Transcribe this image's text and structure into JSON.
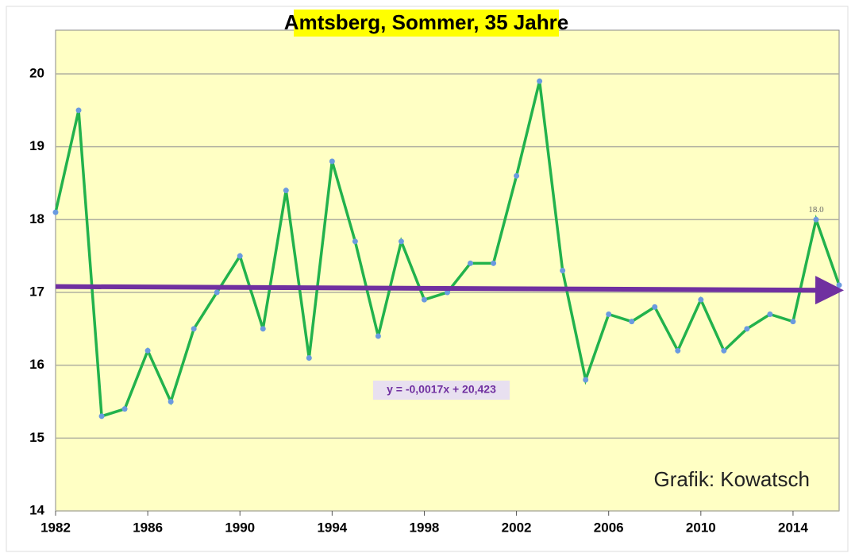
{
  "chart_data": {
    "type": "line",
    "title": "Amtsberg, Sommer, 35 Jahre",
    "x": [
      1982,
      1983,
      1984,
      1985,
      1986,
      1987,
      1988,
      1989,
      1990,
      1991,
      1992,
      1993,
      1994,
      1995,
      1996,
      1997,
      1998,
      1999,
      2000,
      2001,
      2002,
      2003,
      2004,
      2005,
      2006,
      2007,
      2008,
      2009,
      2010,
      2011,
      2012,
      2013,
      2014,
      2015,
      2016
    ],
    "series": [
      {
        "name": "Sommer",
        "color": "#22b24c",
        "values": [
          18.1,
          19.5,
          15.3,
          15.4,
          16.2,
          15.5,
          16.5,
          17.0,
          17.5,
          16.5,
          18.4,
          16.1,
          18.8,
          17.7,
          16.4,
          17.7,
          16.9,
          17.0,
          17.4,
          17.4,
          18.6,
          19.9,
          17.3,
          15.8,
          16.7,
          16.6,
          16.8,
          16.2,
          16.9,
          16.2,
          16.5,
          16.7,
          16.6,
          18.0,
          17.1
        ],
        "value_labels": [
          null,
          null,
          null,
          null,
          null,
          null,
          null,
          null,
          null,
          null,
          null,
          null,
          null,
          null,
          null,
          null,
          null,
          null,
          null,
          null,
          null,
          null,
          null,
          null,
          null,
          null,
          null,
          null,
          null,
          null,
          null,
          null,
          null,
          "18.0",
          null
        ]
      }
    ],
    "trend": {
      "color": "#7030a0",
      "x": [
        1982,
        2016
      ],
      "values": [
        17.08,
        17.03
      ],
      "equation": "y = -0,0017x + 20,423"
    },
    "annotation": "Grafik: Kowatsch",
    "xlim": [
      1982,
      2016
    ],
    "xticks": [
      1982,
      1986,
      1990,
      1994,
      1998,
      2002,
      2006,
      2010,
      2014
    ],
    "ylim": [
      14,
      20.6
    ],
    "yticks": [
      14,
      15,
      16,
      17,
      18,
      19,
      20
    ],
    "grid": true
  }
}
